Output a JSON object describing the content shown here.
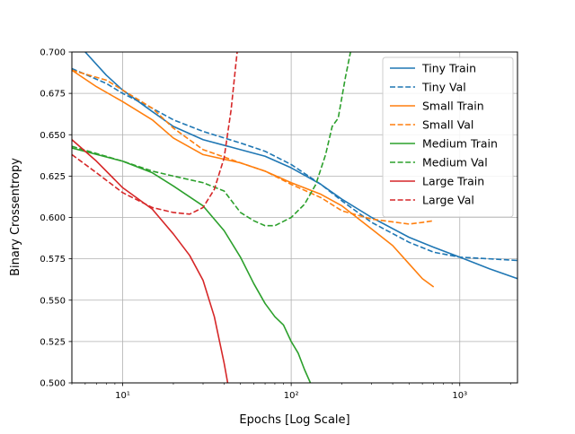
{
  "chart_data": {
    "type": "line",
    "title": "",
    "xlabel": "Epochs [Log Scale]",
    "ylabel": "Binary Crossentropy",
    "xscale": "log",
    "xlim": [
      5,
      2200
    ],
    "ylim": [
      0.5,
      0.7
    ],
    "grid": true,
    "legend_position": "top-right",
    "x_ticks": [
      {
        "value": 10,
        "label": "10¹"
      },
      {
        "value": 100,
        "label": "10²"
      },
      {
        "value": 1000,
        "label": "10³"
      }
    ],
    "y_ticks": [
      {
        "value": 0.5,
        "label": "0.500"
      },
      {
        "value": 0.525,
        "label": "0.525"
      },
      {
        "value": 0.55,
        "label": "0.550"
      },
      {
        "value": 0.575,
        "label": "0.575"
      },
      {
        "value": 0.6,
        "label": "0.600"
      },
      {
        "value": 0.625,
        "label": "0.625"
      },
      {
        "value": 0.65,
        "label": "0.650"
      },
      {
        "value": 0.675,
        "label": "0.675"
      },
      {
        "value": 0.7,
        "label": "0.700"
      }
    ],
    "series": [
      {
        "name": "Tiny Train",
        "color": "#1f77b4",
        "dash": false,
        "points": [
          [
            5,
            0.712
          ],
          [
            6,
            0.7
          ],
          [
            8,
            0.686
          ],
          [
            10,
            0.677
          ],
          [
            15,
            0.664
          ],
          [
            20,
            0.655
          ],
          [
            30,
            0.647
          ],
          [
            50,
            0.641
          ],
          [
            70,
            0.637
          ],
          [
            100,
            0.63
          ],
          [
            150,
            0.62
          ],
          [
            200,
            0.611
          ],
          [
            300,
            0.6
          ],
          [
            500,
            0.588
          ],
          [
            700,
            0.582
          ],
          [
            1000,
            0.576
          ],
          [
            1500,
            0.569
          ],
          [
            2200,
            0.563
          ]
        ]
      },
      {
        "name": "Tiny Val",
        "color": "#1f77b4",
        "dash": true,
        "points": [
          [
            5,
            0.69
          ],
          [
            8,
            0.681
          ],
          [
            10,
            0.675
          ],
          [
            15,
            0.666
          ],
          [
            20,
            0.659
          ],
          [
            30,
            0.652
          ],
          [
            50,
            0.645
          ],
          [
            70,
            0.64
          ],
          [
            100,
            0.632
          ],
          [
            150,
            0.62
          ],
          [
            200,
            0.61
          ],
          [
            300,
            0.597
          ],
          [
            500,
            0.585
          ],
          [
            700,
            0.579
          ],
          [
            1000,
            0.576
          ],
          [
            1500,
            0.575
          ],
          [
            2200,
            0.574
          ]
        ]
      },
      {
        "name": "Small Train",
        "color": "#ff7f0e",
        "dash": false,
        "points": [
          [
            5,
            0.689
          ],
          [
            7,
            0.679
          ],
          [
            10,
            0.67
          ],
          [
            15,
            0.659
          ],
          [
            20,
            0.648
          ],
          [
            30,
            0.638
          ],
          [
            50,
            0.633
          ],
          [
            70,
            0.628
          ],
          [
            100,
            0.621
          ],
          [
            150,
            0.614
          ],
          [
            200,
            0.607
          ],
          [
            300,
            0.593
          ],
          [
            400,
            0.583
          ],
          [
            500,
            0.572
          ],
          [
            600,
            0.563
          ],
          [
            700,
            0.558
          ]
        ]
      },
      {
        "name": "Small Val",
        "color": "#ff7f0e",
        "dash": true,
        "points": [
          [
            5,
            0.689
          ],
          [
            8,
            0.683
          ],
          [
            10,
            0.677
          ],
          [
            15,
            0.666
          ],
          [
            20,
            0.654
          ],
          [
            30,
            0.641
          ],
          [
            50,
            0.633
          ],
          [
            70,
            0.628
          ],
          [
            100,
            0.62
          ],
          [
            150,
            0.612
          ],
          [
            200,
            0.604
          ],
          [
            300,
            0.599
          ],
          [
            500,
            0.596
          ],
          [
            600,
            0.597
          ],
          [
            700,
            0.598
          ]
        ]
      },
      {
        "name": "Medium Train",
        "color": "#2ca02c",
        "dash": false,
        "points": [
          [
            5,
            0.642
          ],
          [
            10,
            0.634
          ],
          [
            15,
            0.627
          ],
          [
            20,
            0.619
          ],
          [
            30,
            0.607
          ],
          [
            40,
            0.592
          ],
          [
            50,
            0.576
          ],
          [
            60,
            0.56
          ],
          [
            70,
            0.548
          ],
          [
            80,
            0.54
          ],
          [
            90,
            0.535
          ],
          [
            100,
            0.525
          ],
          [
            110,
            0.518
          ],
          [
            120,
            0.508
          ],
          [
            130,
            0.5
          ]
        ]
      },
      {
        "name": "Medium Val",
        "color": "#2ca02c",
        "dash": true,
        "points": [
          [
            5,
            0.643
          ],
          [
            10,
            0.634
          ],
          [
            15,
            0.628
          ],
          [
            20,
            0.625
          ],
          [
            30,
            0.621
          ],
          [
            40,
            0.616
          ],
          [
            50,
            0.603
          ],
          [
            60,
            0.598
          ],
          [
            70,
            0.595
          ],
          [
            80,
            0.595
          ],
          [
            100,
            0.6
          ],
          [
            120,
            0.608
          ],
          [
            140,
            0.62
          ],
          [
            160,
            0.638
          ],
          [
            175,
            0.655
          ],
          [
            190,
            0.66
          ],
          [
            210,
            0.685
          ],
          [
            230,
            0.705
          ]
        ]
      },
      {
        "name": "Large Train",
        "color": "#d62728",
        "dash": false,
        "points": [
          [
            5,
            0.647
          ],
          [
            7,
            0.634
          ],
          [
            10,
            0.618
          ],
          [
            15,
            0.605
          ],
          [
            20,
            0.59
          ],
          [
            25,
            0.577
          ],
          [
            30,
            0.562
          ],
          [
            35,
            0.54
          ],
          [
            40,
            0.512
          ],
          [
            42,
            0.5
          ]
        ]
      },
      {
        "name": "Large Val",
        "color": "#d62728",
        "dash": true,
        "points": [
          [
            5,
            0.638
          ],
          [
            7,
            0.627
          ],
          [
            10,
            0.615
          ],
          [
            15,
            0.606
          ],
          [
            20,
            0.603
          ],
          [
            25,
            0.602
          ],
          [
            30,
            0.606
          ],
          [
            35,
            0.617
          ],
          [
            40,
            0.636
          ],
          [
            44,
            0.665
          ],
          [
            47,
            0.693
          ],
          [
            49,
            0.71
          ]
        ]
      }
    ]
  }
}
